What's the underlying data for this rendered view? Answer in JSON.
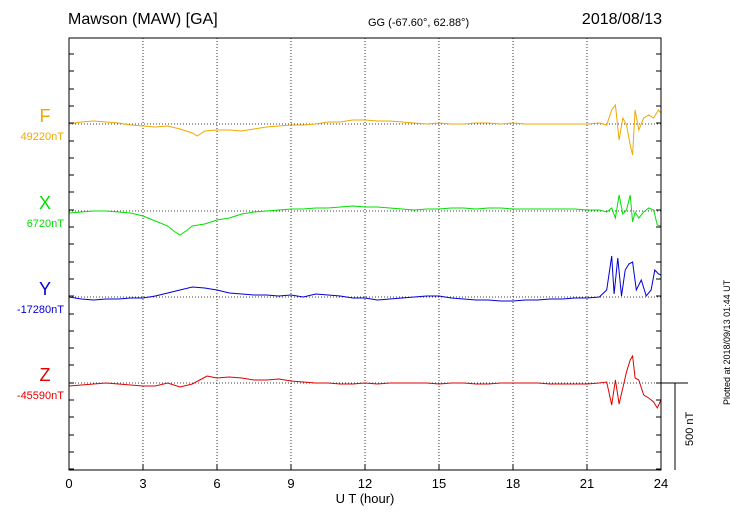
{
  "header": {
    "station": "Mawson (MAW)  [GA]",
    "coords": "GG (-67.60°,  62.88°)",
    "date": "2018/08/13"
  },
  "footer": {
    "plotted": "Plotted at 2018/09/13 01:44 UT"
  },
  "scale": {
    "label": "500 nT",
    "value_nT": 500
  },
  "chart_data": {
    "type": "line",
    "title": "Mawson (MAW)  [GA]",
    "xlabel": "U T (hour)",
    "ylabel": "",
    "xlim": [
      0,
      24
    ],
    "xticks": [
      "0",
      "3",
      "6",
      "9",
      "12",
      "15",
      "18",
      "21",
      "24"
    ],
    "grid": true,
    "series": [
      {
        "name": "F",
        "baseline": "49220nT",
        "color": "#f0a800",
        "points": [
          [
            0,
            124
          ],
          [
            0.5,
            122
          ],
          [
            1,
            121
          ],
          [
            1.5,
            122
          ],
          [
            2,
            123
          ],
          [
            2.5,
            125
          ],
          [
            3,
            126
          ],
          [
            3.5,
            127
          ],
          [
            4,
            126
          ],
          [
            4.5,
            129
          ],
          [
            5,
            133
          ],
          [
            5.2,
            136
          ],
          [
            5.5,
            131
          ],
          [
            6,
            130
          ],
          [
            6.5,
            130
          ],
          [
            7,
            131
          ],
          [
            7.5,
            129
          ],
          [
            8,
            127
          ],
          [
            8.5,
            126
          ],
          [
            9,
            125
          ],
          [
            9.5,
            125
          ],
          [
            10,
            124
          ],
          [
            10.5,
            122
          ],
          [
            11,
            122
          ],
          [
            11.5,
            120
          ],
          [
            12,
            120
          ],
          [
            12.5,
            121
          ],
          [
            13,
            121
          ],
          [
            13.5,
            122
          ],
          [
            14,
            123
          ],
          [
            14.5,
            124
          ],
          [
            15,
            123
          ],
          [
            15.5,
            124
          ],
          [
            16,
            124
          ],
          [
            16.5,
            123
          ],
          [
            17,
            123
          ],
          [
            17.5,
            124
          ],
          [
            18,
            123
          ],
          [
            18.5,
            124
          ],
          [
            19,
            124
          ],
          [
            19.5,
            124
          ],
          [
            20,
            124
          ],
          [
            20.5,
            124
          ],
          [
            21,
            124
          ],
          [
            21.5,
            123
          ],
          [
            21.8,
            125
          ],
          [
            22,
            110
          ],
          [
            22.15,
            105
          ],
          [
            22.3,
            140
          ],
          [
            22.45,
            118
          ],
          [
            22.6,
            125
          ],
          [
            22.75,
            145
          ],
          [
            22.85,
            155
          ],
          [
            22.95,
            110
          ],
          [
            23.1,
            130
          ],
          [
            23.3,
            118
          ],
          [
            23.5,
            115
          ],
          [
            23.7,
            118
          ],
          [
            23.9,
            110
          ],
          [
            24,
            113
          ]
        ]
      },
      {
        "name": "X",
        "baseline": "6720nT",
        "color": "#00e000",
        "points": [
          [
            0,
            213
          ],
          [
            0.5,
            212
          ],
          [
            1,
            211
          ],
          [
            1.5,
            211
          ],
          [
            2,
            212
          ],
          [
            2.5,
            213
          ],
          [
            3,
            216
          ],
          [
            3.5,
            221
          ],
          [
            4,
            226
          ],
          [
            4.3,
            232
          ],
          [
            4.5,
            235
          ],
          [
            4.8,
            230
          ],
          [
            5,
            226
          ],
          [
            5.5,
            224
          ],
          [
            6,
            220
          ],
          [
            6.5,
            218
          ],
          [
            7,
            214
          ],
          [
            7.5,
            212
          ],
          [
            8,
            211
          ],
          [
            8.5,
            210
          ],
          [
            9,
            209
          ],
          [
            9.5,
            209
          ],
          [
            10,
            208
          ],
          [
            10.5,
            208
          ],
          [
            11,
            207
          ],
          [
            11.5,
            206
          ],
          [
            12,
            207
          ],
          [
            12.5,
            207
          ],
          [
            13,
            208
          ],
          [
            13.5,
            209
          ],
          [
            14,
            210
          ],
          [
            14.5,
            209
          ],
          [
            15,
            209
          ],
          [
            15.5,
            208
          ],
          [
            16,
            208
          ],
          [
            16.5,
            209
          ],
          [
            17,
            208
          ],
          [
            17.5,
            208
          ],
          [
            18,
            209
          ],
          [
            18.5,
            209
          ],
          [
            19,
            209
          ],
          [
            19.5,
            209
          ],
          [
            20,
            209
          ],
          [
            20.5,
            209
          ],
          [
            21,
            210
          ],
          [
            21.5,
            210
          ],
          [
            21.8,
            212
          ],
          [
            22,
            208
          ],
          [
            22.15,
            218
          ],
          [
            22.3,
            195
          ],
          [
            22.45,
            214
          ],
          [
            22.6,
            210
          ],
          [
            22.75,
            195
          ],
          [
            22.85,
            222
          ],
          [
            22.95,
            212
          ],
          [
            23.1,
            218
          ],
          [
            23.3,
            212
          ],
          [
            23.5,
            208
          ],
          [
            23.7,
            210
          ],
          [
            23.85,
            225
          ],
          [
            24,
            226
          ]
        ]
      },
      {
        "name": "Y",
        "baseline": "-17280nT",
        "color": "#0000d8",
        "points": [
          [
            0,
            297
          ],
          [
            0.5,
            299
          ],
          [
            1,
            300
          ],
          [
            1.5,
            299
          ],
          [
            2,
            299
          ],
          [
            2.5,
            298
          ],
          [
            3,
            298
          ],
          [
            3.5,
            296
          ],
          [
            4,
            293
          ],
          [
            4.5,
            290
          ],
          [
            5,
            287
          ],
          [
            5.5,
            288
          ],
          [
            6,
            290
          ],
          [
            6.5,
            293
          ],
          [
            7,
            294
          ],
          [
            7.5,
            295
          ],
          [
            8,
            295
          ],
          [
            8.5,
            296
          ],
          [
            9,
            295
          ],
          [
            9.5,
            297
          ],
          [
            10,
            294
          ],
          [
            10.5,
            295
          ],
          [
            11,
            296
          ],
          [
            11.5,
            298
          ],
          [
            12,
            298
          ],
          [
            12.5,
            300
          ],
          [
            13,
            299
          ],
          [
            13.5,
            298
          ],
          [
            14,
            297
          ],
          [
            14.5,
            296
          ],
          [
            15,
            296
          ],
          [
            15.5,
            298
          ],
          [
            16,
            299
          ],
          [
            16.5,
            300
          ],
          [
            17,
            300
          ],
          [
            17.5,
            301
          ],
          [
            18,
            301
          ],
          [
            18.5,
            300
          ],
          [
            19,
            300
          ],
          [
            19.5,
            299
          ],
          [
            20,
            299
          ],
          [
            20.5,
            298
          ],
          [
            21,
            298
          ],
          [
            21.5,
            297
          ],
          [
            21.8,
            290
          ],
          [
            22,
            256
          ],
          [
            22.1,
            294
          ],
          [
            22.25,
            258
          ],
          [
            22.4,
            296
          ],
          [
            22.55,
            270
          ],
          [
            22.7,
            264
          ],
          [
            22.85,
            262
          ],
          [
            23,
            290
          ],
          [
            23.2,
            280
          ],
          [
            23.4,
            296
          ],
          [
            23.6,
            290
          ],
          [
            23.75,
            270
          ],
          [
            23.9,
            274
          ],
          [
            24,
            275
          ]
        ]
      },
      {
        "name": "Z",
        "baseline": "-45590nT",
        "color": "#e00000",
        "points": [
          [
            0,
            386
          ],
          [
            0.5,
            385
          ],
          [
            1,
            384
          ],
          [
            1.5,
            383
          ],
          [
            2,
            384
          ],
          [
            2.5,
            385
          ],
          [
            3,
            386
          ],
          [
            3.5,
            386
          ],
          [
            4,
            383
          ],
          [
            4.5,
            387
          ],
          [
            5,
            384
          ],
          [
            5.3,
            380
          ],
          [
            5.6,
            376
          ],
          [
            6,
            378
          ],
          [
            6.5,
            377
          ],
          [
            7,
            378
          ],
          [
            7.5,
            380
          ],
          [
            8,
            380
          ],
          [
            8.5,
            379
          ],
          [
            9,
            381
          ],
          [
            9.5,
            382
          ],
          [
            10,
            383
          ],
          [
            10.5,
            383
          ],
          [
            11,
            384
          ],
          [
            11.5,
            384
          ],
          [
            12,
            383
          ],
          [
            12.5,
            384
          ],
          [
            13,
            383
          ],
          [
            13.5,
            383
          ],
          [
            14,
            383
          ],
          [
            14.5,
            383
          ],
          [
            15,
            384
          ],
          [
            15.5,
            383
          ],
          [
            16,
            383
          ],
          [
            16.5,
            384
          ],
          [
            17,
            384
          ],
          [
            17.5,
            383
          ],
          [
            18,
            383
          ],
          [
            18.5,
            383
          ],
          [
            19,
            383
          ],
          [
            19.5,
            384
          ],
          [
            20,
            384
          ],
          [
            20.5,
            384
          ],
          [
            21,
            384
          ],
          [
            21.5,
            383
          ],
          [
            21.8,
            382
          ],
          [
            22,
            405
          ],
          [
            22.15,
            380
          ],
          [
            22.3,
            404
          ],
          [
            22.45,
            388
          ],
          [
            22.6,
            372
          ],
          [
            22.75,
            360
          ],
          [
            22.85,
            356
          ],
          [
            22.95,
            378
          ],
          [
            23.1,
            380
          ],
          [
            23.3,
            395
          ],
          [
            23.5,
            398
          ],
          [
            23.7,
            402
          ],
          [
            23.85,
            408
          ],
          [
            24,
            400
          ]
        ]
      }
    ]
  }
}
